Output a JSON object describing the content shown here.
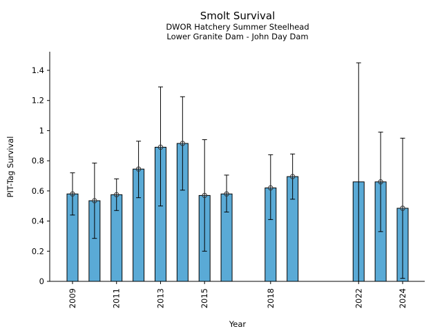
{
  "chart_data": {
    "type": "bar",
    "title": "Smolt Survival",
    "subtitle_lines": [
      "DWOR Hatchery Summer Steelhead",
      "Lower Granite Dam - John Day Dam"
    ],
    "xlabel": "Year",
    "ylabel": "PIT-Tag Survival",
    "ylim": [
      0,
      1.52
    ],
    "xlim": [
      2007.9,
      2025.0
    ],
    "yticks": [
      0,
      0.2,
      0.4,
      0.6,
      0.8,
      1,
      1.2,
      1.4
    ],
    "ytick_labels": [
      "0",
      "0.2",
      "0.4",
      "0.6",
      "0.8",
      "1",
      "1.2",
      "1.4"
    ],
    "xticks": [
      2009,
      2011,
      2013,
      2015,
      2018,
      2022,
      2024
    ],
    "xtick_labels": [
      "2009",
      "2011",
      "2013",
      "2015",
      "2018",
      "2022",
      "2024"
    ],
    "grid": false,
    "bar_color": "#5aaad6",
    "bars": [
      {
        "year": 2009,
        "value": 0.58,
        "lower": 0.44,
        "upper": 0.72,
        "marker": true
      },
      {
        "year": 2010,
        "value": 0.535,
        "lower": 0.285,
        "upper": 0.785,
        "marker": true
      },
      {
        "year": 2011,
        "value": 0.575,
        "lower": 0.47,
        "upper": 0.68,
        "marker": true
      },
      {
        "year": 2012,
        "value": 0.745,
        "lower": 0.555,
        "upper": 0.93,
        "marker": true
      },
      {
        "year": 2013,
        "value": 0.89,
        "lower": 0.5,
        "upper": 1.29,
        "marker": true
      },
      {
        "year": 2014,
        "value": 0.915,
        "lower": 0.605,
        "upper": 1.225,
        "marker": true
      },
      {
        "year": 2015,
        "value": 0.57,
        "lower": 0.2,
        "upper": 0.94,
        "marker": true
      },
      {
        "year": 2016,
        "value": 0.58,
        "lower": 0.46,
        "upper": 0.705,
        "marker": true
      },
      {
        "year": 2018,
        "value": 0.62,
        "lower": 0.41,
        "upper": 0.84,
        "marker": true
      },
      {
        "year": 2019,
        "value": 0.695,
        "lower": 0.545,
        "upper": 0.845,
        "marker": true
      },
      {
        "year": 2022,
        "value": 0.66,
        "lower": -0.13,
        "upper": 1.45,
        "marker": false
      },
      {
        "year": 2023,
        "value": 0.66,
        "lower": 0.33,
        "upper": 0.99,
        "marker": true
      },
      {
        "year": 2024,
        "value": 0.485,
        "lower": 0.02,
        "upper": 0.95,
        "marker": true
      }
    ]
  }
}
